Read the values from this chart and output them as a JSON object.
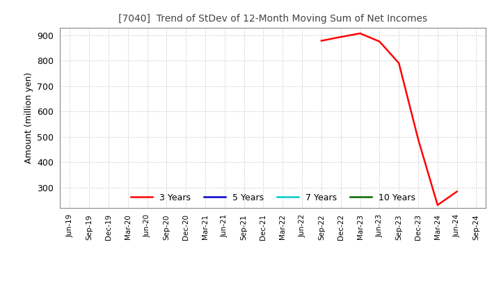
{
  "title": "[7040]  Trend of StDev of 12-Month Moving Sum of Net Incomes",
  "ylabel": "Amount (million yen)",
  "background_color": "#ffffff",
  "grid_color": "#bbbbbb",
  "ylim": [
    220,
    930
  ],
  "yticks": [
    300,
    400,
    500,
    600,
    700,
    800,
    900
  ],
  "line_3y_color": "#ff0000",
  "line_5y_color": "#0000cc",
  "line_7y_color": "#00cccc",
  "line_10y_color": "#006600",
  "legend_labels": [
    "3 Years",
    "5 Years",
    "7 Years",
    "10 Years"
  ],
  "x_labels": [
    "Jun-19",
    "Sep-19",
    "Dec-19",
    "Mar-20",
    "Jun-20",
    "Sep-20",
    "Dec-20",
    "Mar-21",
    "Jun-21",
    "Sep-21",
    "Dec-21",
    "Mar-22",
    "Jun-22",
    "Sep-22",
    "Dec-22",
    "Mar-23",
    "Jun-23",
    "Sep-23",
    "Dec-23",
    "Mar-24",
    "Jun-24",
    "Sep-24"
  ],
  "data_3y_x": [
    13,
    14,
    15,
    16,
    17,
    18,
    19,
    20
  ],
  "data_3y_y": [
    878,
    893,
    907,
    875,
    790,
    490,
    232,
    285
  ]
}
